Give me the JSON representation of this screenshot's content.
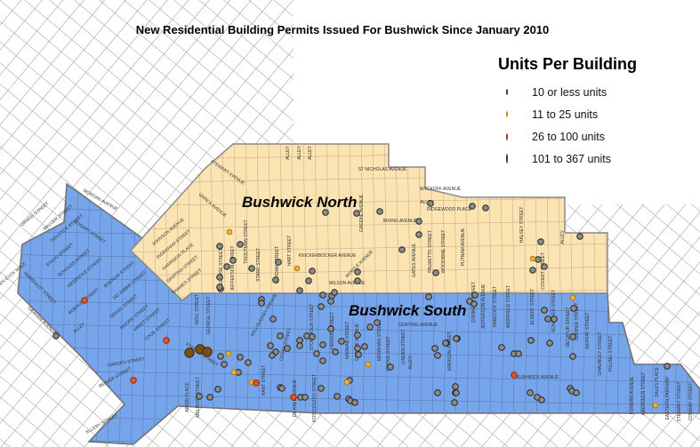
{
  "map": {
    "title": "New Residential Building Permits Issued For Bushwick Since January 2010",
    "regions": [
      {
        "name": "Bushwick North",
        "color": "#FBE3B2"
      },
      {
        "name": "Bushwick South",
        "color": "#76A5EC"
      }
    ],
    "legend": {
      "title": "Units Per Building",
      "items": [
        {
          "label": "10 or less units",
          "color": "#8C8C8C"
        },
        {
          "label": "11 to 25 units",
          "color": "#F2B23A"
        },
        {
          "label": "26 to 100 units",
          "color": "#E2551E"
        },
        {
          "label": "101 to 367 units",
          "color": "#7A5012"
        }
      ]
    },
    "street_labels": [
      "STEWART AVENUE",
      "VARICK AVENUE",
      "ALLEY",
      "ALLEY",
      "ALLEY",
      "ST NICHOLAS AVENUE",
      "WYCKOFF AVENUE",
      "ALLEY",
      "RIDGEWOOD PLACE",
      "IRVING AVENUE",
      "TROUTMAN STREET",
      "STARR STREET",
      "SUYDAM STREET",
      "HART STREET",
      "KNICKERBOCKER AVENUE",
      "GREENE AVENUE",
      "MYRTLE AVENUE",
      "MELROSE STREET",
      "JEFFERSON STREET",
      "WILSON AVENUE",
      "GATES AVENUE",
      "PALMETTO STREET",
      "WOODBINE STREET",
      "PUTNAM AVENUE",
      "HALSEY STREET",
      "ALLEY",
      "COVERT STREET",
      "JOHNSON AVENUE",
      "INGRAHAM STREET",
      "HARRISON PLACE",
      "GRATTAN STREET",
      "THAMES STREET",
      "MORGAN AVENUE",
      "GRAND STREET",
      "MAUJER STREET",
      "TEN EYCK STREET",
      "BOGART STREET",
      "STAGG STREET",
      "SCHOLES STREET",
      "MESEROLE STREET",
      "TEN EYCK WALK",
      "HUMBOLDT STREET",
      "GRAHAM AVENUE",
      "ALLEY",
      "BOERUM STREET",
      "BOERUM STREET",
      "MC KIBBIN STREET",
      "SEIGEL STREET",
      "MOORE STREET",
      "VARET STREET",
      "COOK STREET",
      "NOLL STREET",
      "GEORGE STREET",
      "ARION PLACE",
      "MELROSE STREET",
      "BEAVER STREET",
      "GARDEN STREET",
      "ELLERY STREET",
      "STANWIX STREET",
      "CENTRAL AVENUE",
      "KOSCIUSZKO STREET",
      "DE KALB AVENUE",
      "GREENE AVENUE",
      "LINDEN STREET",
      "GROVE STREET",
      "MENAHAN STREET",
      "HARMAN STREET",
      "HIMROD STREET",
      "STOCKHOLM STREET",
      "WILLOUGHBY AVENUE",
      "HART STREET",
      "CEDAR STREET",
      "MADISON STREET",
      "WEIRFIELD STREET",
      "HANCOCK STREET",
      "JEFFERSON AVENUE",
      "CORNELIA STREET",
      "ELDERT STREET",
      "SCHAEFER STREET",
      "DECATUR STREET",
      "COOPER STREET",
      "MOFFAT STREET",
      "CHAUNCEY STREET",
      "PILLING STREET",
      "BUSHWICK AVENUE",
      "ALLEY",
      "FURMAN AVENUE",
      "ABERDEEN STREET",
      "SALES PLACE",
      "EASTERN PARKWAY",
      "STEWART STREET",
      "CONWAY STREET"
    ]
  }
}
